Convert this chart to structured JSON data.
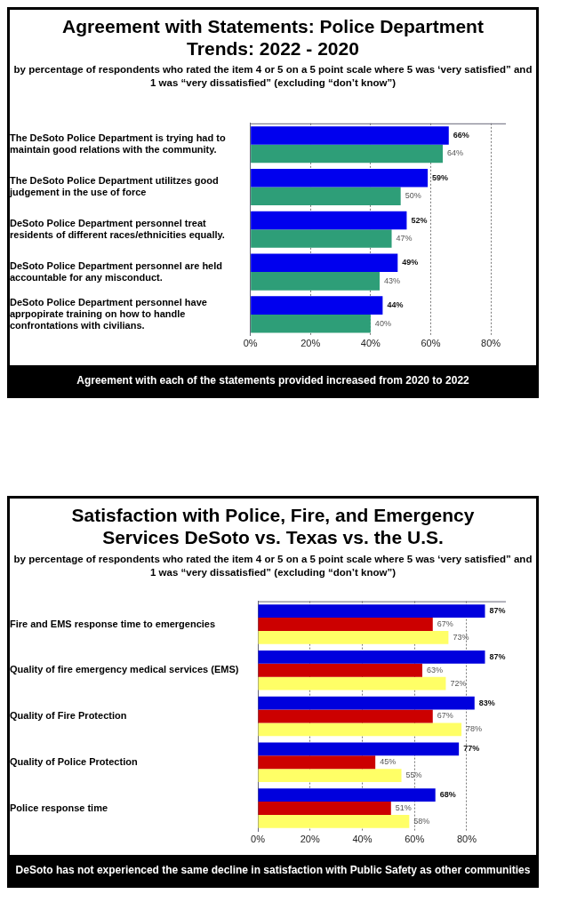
{
  "chart_data": [
    {
      "type": "bar",
      "orientation": "horizontal",
      "title": "Agreement with Statements: Police Department Trends: 2022 - 2020",
      "subtitle": "by percentage of respondents who rated the item 4 or 5 on a 5 point scale where 5 was ‘very satisfied” and 1 was “very dissatisfied” (excluding “don’t know”)",
      "categories": [
        "The DeSoto Police Department is trying had to maintain good relations with the community.",
        "The DeSoto Police Department utilitzes good judgement in the use of force",
        "DeSoto Police Department personnel treat residents of different races/ethnicities equally.",
        "DeSoto Police Department personnel are held accountable for any misconduct.",
        "DeSoto Police Department personnel have aprpopirate training on how to handle confrontations with civilians."
      ],
      "series": [
        {
          "color": "#0000ee",
          "values": [
            66,
            59,
            52,
            49,
            44
          ],
          "value_labels": [
            "66%",
            "59%",
            "52%",
            "49%",
            "44%"
          ]
        },
        {
          "color": "#2e9e78",
          "values": [
            64,
            50,
            47,
            43,
            40
          ],
          "value_labels": [
            "64%",
            "50%",
            "47%",
            "43%",
            "40%"
          ]
        }
      ],
      "xlim": [
        0,
        85
      ],
      "xticks": [
        {
          "value": 0,
          "label": "0%"
        },
        {
          "value": 20,
          "label": "20%"
        },
        {
          "value": 40,
          "label": "40%"
        },
        {
          "value": 60,
          "label": "60%"
        },
        {
          "value": 80,
          "label": "80%"
        }
      ],
      "grid": "x",
      "legend": false,
      "annotations": [
        "Agreement with each of the statements provided increased from 2020 to 2022"
      ]
    },
    {
      "type": "bar",
      "orientation": "horizontal",
      "title": "Satisfaction with Police, Fire, and Emergency Services DeSoto vs. Texas vs. the U.S.",
      "subtitle": "by percentage of respondents who rated the item 4 or 5 on a 5 point scale where 5 was ‘very satisfied” and 1 was “very dissatisfied” (excluding “don’t know”)",
      "categories": [
        "Fire and EMS response time to emergencies",
        "Quality of fire emergency medical services (EMS)",
        "Quality of Fire Protection",
        "Quality of Police Protection",
        "Police response time"
      ],
      "series": [
        {
          "color": "#0000dd",
          "values": [
            87,
            87,
            83,
            77,
            68
          ],
          "value_labels": [
            "87%",
            "87%",
            "83%",
            "77%",
            "68%"
          ]
        },
        {
          "color": "#cc0000",
          "values": [
            67,
            63,
            67,
            45,
            51
          ],
          "value_labels": [
            "67%",
            "63%",
            "67%",
            "45%",
            "51%"
          ]
        },
        {
          "color": "#ffff66",
          "values": [
            73,
            72,
            78,
            55,
            58
          ],
          "value_labels": [
            "73%",
            "72%",
            "78%",
            "55%",
            "58%"
          ]
        }
      ],
      "xlim": [
        0,
        95
      ],
      "xticks": [
        {
          "value": 0,
          "label": "0%"
        },
        {
          "value": 20,
          "label": "20%"
        },
        {
          "value": 40,
          "label": "40%"
        },
        {
          "value": 60,
          "label": "60%"
        },
        {
          "value": 80,
          "label": "80%"
        }
      ],
      "grid": "x",
      "legend": false,
      "annotations": [
        "DeSoto has not experienced the same decline in satisfaction with Public Safety as other communities"
      ]
    }
  ]
}
